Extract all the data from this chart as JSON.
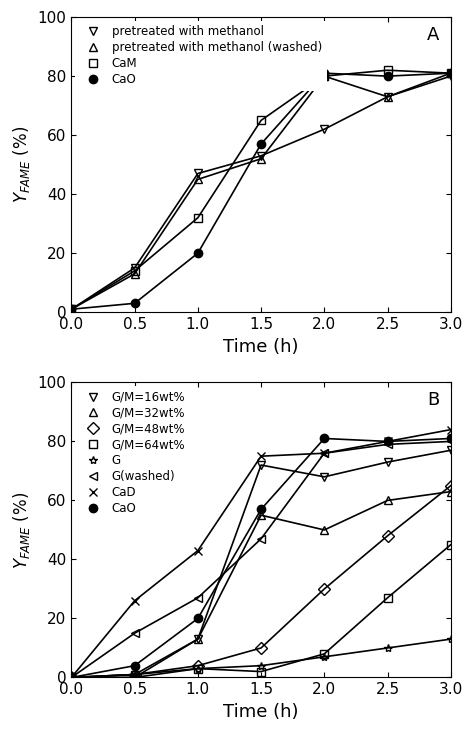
{
  "panel_A": {
    "label": "A",
    "series": [
      {
        "name": "pretreated with methanol",
        "marker": "v",
        "color": "black",
        "fillstyle": "none",
        "x": [
          0.0,
          0.5,
          1.0,
          1.5,
          2.0,
          2.5,
          3.0
        ],
        "y": [
          1,
          15,
          47,
          53,
          62,
          73,
          80
        ]
      },
      {
        "name": "pretreated with methanol (washed)",
        "marker": "^",
        "color": "black",
        "fillstyle": "none",
        "x": [
          0.0,
          0.5,
          1.0,
          1.5,
          2.0,
          2.5,
          3.0
        ],
        "y": [
          1,
          13,
          45,
          52,
          80,
          73,
          81
        ]
      },
      {
        "name": "CaM",
        "marker": "s",
        "color": "black",
        "fillstyle": "none",
        "x": [
          0.0,
          0.5,
          1.0,
          1.5,
          2.0,
          2.5,
          3.0
        ],
        "y": [
          1,
          14,
          32,
          65,
          80,
          82,
          81
        ]
      },
      {
        "name": "CaO",
        "marker": "o",
        "color": "black",
        "fillstyle": "full",
        "x": [
          0.0,
          0.5,
          1.0,
          1.5,
          2.0,
          2.5,
          3.0
        ],
        "y": [
          1,
          3,
          20,
          57,
          81,
          80,
          81
        ]
      }
    ],
    "xlabel": "Time (h)",
    "ylabel": "$Y_{FAME}$ (%)",
    "xlim": [
      0.0,
      3.0
    ],
    "ylim": [
      0,
      100
    ],
    "xticks": [
      0.0,
      0.5,
      1.0,
      1.5,
      2.0,
      2.5,
      3.0
    ],
    "yticks": [
      0,
      20,
      40,
      60,
      80,
      100
    ]
  },
  "panel_B": {
    "label": "B",
    "series": [
      {
        "name": "G/M=16wt%",
        "marker": "v",
        "color": "black",
        "fillstyle": "none",
        "x": [
          0.0,
          0.5,
          1.0,
          1.5,
          2.0,
          2.5,
          3.0
        ],
        "y": [
          0,
          0,
          13,
          72,
          68,
          73,
          77
        ]
      },
      {
        "name": "G/M=32wt%",
        "marker": "^",
        "color": "black",
        "fillstyle": "none",
        "x": [
          0.0,
          0.5,
          1.0,
          1.5,
          2.0,
          2.5,
          3.0
        ],
        "y": [
          0,
          1,
          13,
          55,
          50,
          60,
          63
        ]
      },
      {
        "name": "G/M=48wt%",
        "marker": "D",
        "color": "black",
        "fillstyle": "none",
        "x": [
          0.0,
          0.5,
          1.0,
          1.5,
          2.0,
          2.5,
          3.0
        ],
        "y": [
          0,
          1,
          4,
          10,
          30,
          48,
          65
        ]
      },
      {
        "name": "G/M=64wt%",
        "marker": "s",
        "color": "black",
        "fillstyle": "none",
        "x": [
          0.0,
          0.5,
          1.0,
          1.5,
          2.0,
          2.5,
          3.0
        ],
        "y": [
          0,
          1,
          3,
          2,
          8,
          27,
          45
        ]
      },
      {
        "name": "G",
        "marker": "*",
        "color": "black",
        "fillstyle": "none",
        "x": [
          0.0,
          0.5,
          1.0,
          1.5,
          2.0,
          2.5,
          3.0
        ],
        "y": [
          0,
          0,
          3,
          4,
          7,
          10,
          13
        ]
      },
      {
        "name": "G(washed)",
        "marker": "<",
        "color": "black",
        "fillstyle": "none",
        "x": [
          0.0,
          0.5,
          1.0,
          1.5,
          2.0,
          2.5,
          3.0
        ],
        "y": [
          0,
          15,
          27,
          47,
          76,
          79,
          80
        ]
      },
      {
        "name": "CaD",
        "marker": "x",
        "color": "black",
        "fillstyle": "none",
        "x": [
          0.0,
          0.5,
          1.0,
          1.5,
          2.0,
          2.5,
          3.0
        ],
        "y": [
          0,
          26,
          43,
          75,
          76,
          80,
          84
        ]
      },
      {
        "name": "CaO",
        "marker": "o",
        "color": "black",
        "fillstyle": "full",
        "x": [
          0.0,
          0.5,
          1.0,
          1.5,
          2.0,
          2.5,
          3.0
        ],
        "y": [
          0,
          4,
          20,
          57,
          81,
          80,
          81
        ]
      }
    ],
    "xlabel": "Time (h)",
    "ylabel": "$Y_{FAME}$ (%)",
    "xlim": [
      0.0,
      3.0
    ],
    "ylim": [
      0,
      100
    ],
    "xticks": [
      0.0,
      0.5,
      1.0,
      1.5,
      2.0,
      2.5,
      3.0
    ],
    "yticks": [
      0,
      20,
      40,
      60,
      80,
      100
    ]
  },
  "figure_bg": "#ffffff",
  "line_color": "black",
  "markersize": 6,
  "linewidth": 1.2,
  "legend_fontsize": 8.5,
  "tick_labelsize": 11,
  "xlabel_fontsize": 13,
  "ylabel_fontsize": 12,
  "panel_label_fontsize": 13
}
